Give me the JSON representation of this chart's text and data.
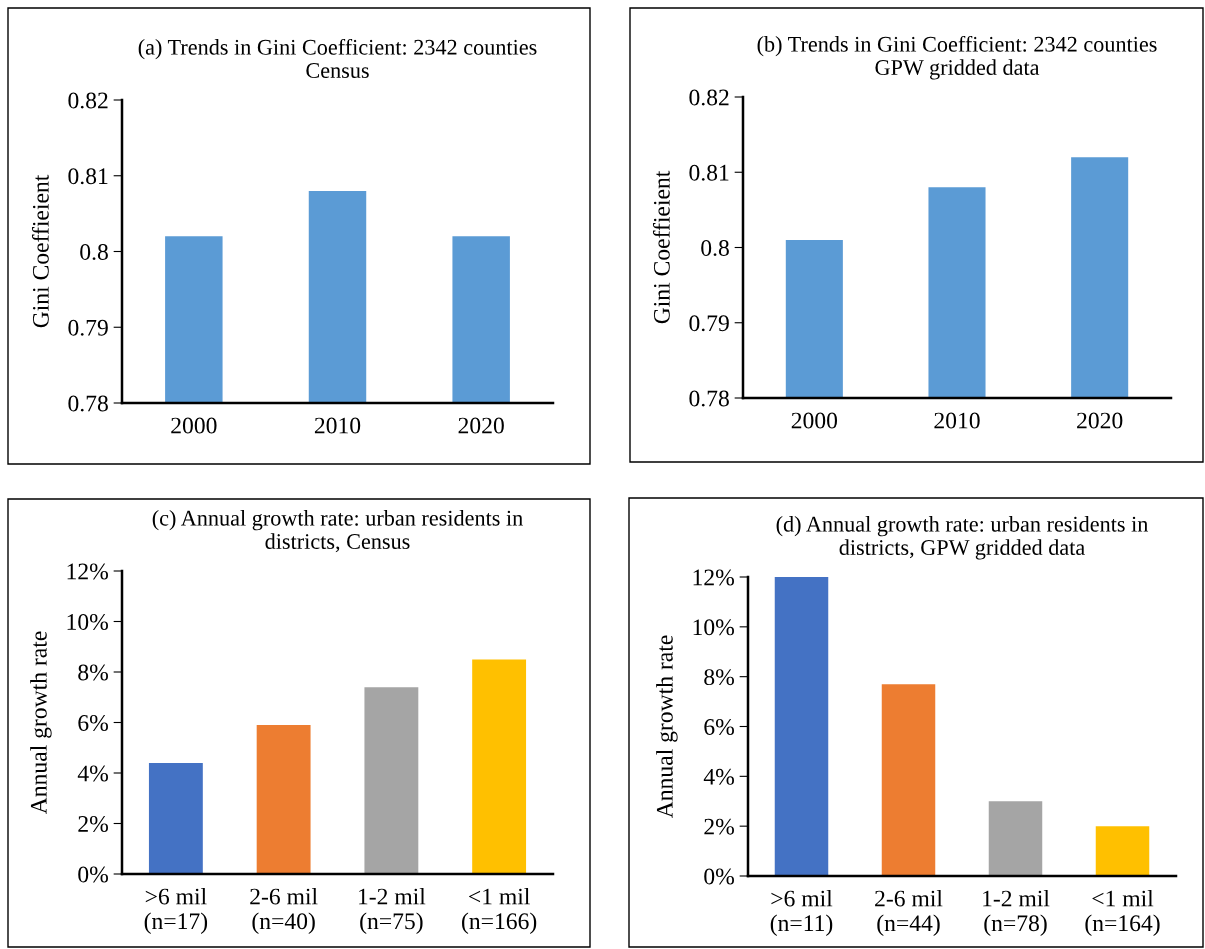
{
  "chart_data": [
    {
      "type": "bar",
      "title": "(a) Trends in Gini Coefficient: 2342 counties\nCensus",
      "ylabel": "Gini Coeffieient",
      "categories": [
        "2000",
        "2010",
        "2020"
      ],
      "values": [
        0.802,
        0.808,
        0.802
      ],
      "color": "#5b9bd5",
      "ylim": [
        0.78,
        0.82
      ],
      "yticks": [
        0.78,
        0.79,
        {
          "value": 0.8,
          "label": "0.8"
        },
        0.81,
        0.82
      ]
    },
    {
      "type": "bar",
      "title": "(b) Trends in Gini Coefficient: 2342 counties\nGPW gridded data",
      "ylabel": "Gini Coeffieient",
      "categories": [
        "2000",
        "2010",
        "2020"
      ],
      "values": [
        0.801,
        0.808,
        0.812
      ],
      "color": "#5b9bd5",
      "ylim": [
        0.78,
        0.82
      ],
      "yticks": [
        0.78,
        0.79,
        {
          "value": 0.8,
          "label": "0.8"
        },
        0.81,
        0.82
      ]
    },
    {
      "type": "bar",
      "title": "(c) Annual growth rate: urban residents in\ndistricts, Census",
      "ylabel": "Annual growth rate",
      "categories": [
        ">6 mil\n(n=17)",
        "2-6 mil\n(n=40)",
        "1-2 mil\n(n=75)",
        "<1 mil\n(n=166)"
      ],
      "values": [
        4.4,
        5.9,
        7.4,
        8.5
      ],
      "colors": [
        "#4472c4",
        "#ed7d31",
        "#a5a5a5",
        "#ffc000"
      ],
      "ylim": [
        0,
        12
      ],
      "yticks": [
        {
          "value": 0,
          "label": "0%"
        },
        {
          "value": 2,
          "label": "2%"
        },
        {
          "value": 4,
          "label": "4%"
        },
        {
          "value": 6,
          "label": "6%"
        },
        {
          "value": 8,
          "label": "8%"
        },
        {
          "value": 10,
          "label": "10%"
        },
        {
          "value": 12,
          "label": "12%"
        }
      ]
    },
    {
      "type": "bar",
      "title": "(d) Annual growth rate: urban residents in\ndistricts, GPW gridded data",
      "ylabel": "Annual growth rate",
      "categories": [
        ">6 mil\n(n=11)",
        "2-6 mil\n(n=44)",
        "1-2 mil\n(n=78)",
        "<1 mil\n(n=164)"
      ],
      "values": [
        12,
        7.7,
        3.0,
        2.0
      ],
      "colors": [
        "#4472c4",
        "#ed7d31",
        "#a5a5a5",
        "#ffc000"
      ],
      "ylim": [
        0,
        12
      ],
      "yticks": [
        {
          "value": 0,
          "label": "0%"
        },
        {
          "value": 2,
          "label": "2%"
        },
        {
          "value": 4,
          "label": "4%"
        },
        {
          "value": 6,
          "label": "6%"
        },
        {
          "value": 8,
          "label": "8%"
        },
        {
          "value": 10,
          "label": "10%"
        },
        {
          "value": 12,
          "label": "12%"
        }
      ]
    }
  ]
}
